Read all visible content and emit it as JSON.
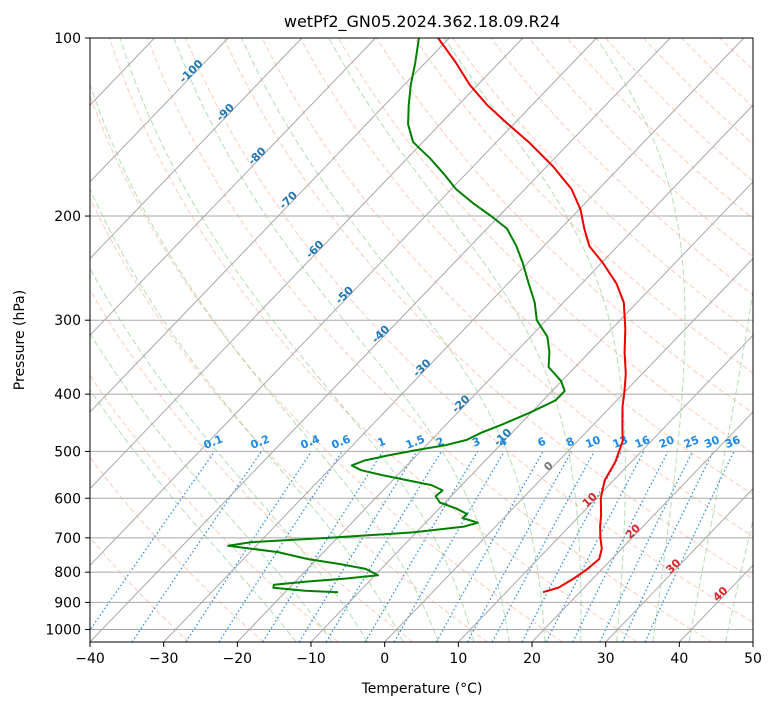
{
  "chart_data": {
    "type": "line",
    "title": "wetPf2_GN05.2024.362.18.09.R24",
    "xlabel": "Temperature (°C)",
    "ylabel": "Pressure (hPa)",
    "xlim": [
      -40,
      50
    ],
    "ylim": [
      1050,
      100
    ],
    "y_scale": "log",
    "grid": true,
    "x_ticks": [
      -40,
      -30,
      -20,
      -10,
      0,
      10,
      20,
      30,
      40,
      50
    ],
    "y_ticks": [
      100,
      200,
      300,
      400,
      500,
      600,
      700,
      800,
      900,
      1000
    ],
    "skew": 35,
    "series": [
      {
        "color": "#ee0000",
        "points": [
          {
            "p": 865,
            "t": 15
          },
          {
            "p": 850,
            "t": 16.5
          },
          {
            "p": 820,
            "t": 17.4
          },
          {
            "p": 790,
            "t": 18
          },
          {
            "p": 760,
            "t": 18.3
          },
          {
            "p": 730,
            "t": 17.3
          },
          {
            "p": 700,
            "t": 15.7
          },
          {
            "p": 670,
            "t": 14.2
          },
          {
            "p": 640,
            "t": 12.8
          },
          {
            "p": 600,
            "t": 10.6
          },
          {
            "p": 560,
            "t": 8.8
          },
          {
            "p": 520,
            "t": 7.8
          },
          {
            "p": 480,
            "t": 6.1
          },
          {
            "p": 450,
            "t": 3.9
          },
          {
            "p": 420,
            "t": 1.6
          },
          {
            "p": 400,
            "t": 0.2
          },
          {
            "p": 370,
            "t": -2.2
          },
          {
            "p": 340,
            "t": -5.2
          },
          {
            "p": 310,
            "t": -8.2
          },
          {
            "p": 280,
            "t": -11.8
          },
          {
            "p": 260,
            "t": -15.3
          },
          {
            "p": 240,
            "t": -19.8
          },
          {
            "p": 225,
            "t": -23.8
          },
          {
            "p": 210,
            "t": -26.8
          },
          {
            "p": 195,
            "t": -29.8
          },
          {
            "p": 180,
            "t": -33.7
          },
          {
            "p": 165,
            "t": -39.1
          },
          {
            "p": 150,
            "t": -45.6
          },
          {
            "p": 140,
            "t": -50.7
          },
          {
            "p": 130,
            "t": -56
          },
          {
            "p": 120,
            "t": -61.1
          },
          {
            "p": 110,
            "t": -65.9
          },
          {
            "p": 100,
            "t": -71.5
          }
        ]
      },
      {
        "color": "#008000",
        "points": [
          {
            "p": 865,
            "t": -12.8
          },
          {
            "p": 860,
            "t": -17.5
          },
          {
            "p": 850,
            "t": -22.2
          },
          {
            "p": 840,
            "t": -22.5
          },
          {
            "p": 830,
            "t": -18.5
          },
          {
            "p": 820,
            "t": -13.5
          },
          {
            "p": 810,
            "t": -9.6
          },
          {
            "p": 790,
            "t": -12.1
          },
          {
            "p": 775,
            "t": -16.3
          },
          {
            "p": 760,
            "t": -21.3
          },
          {
            "p": 740,
            "t": -26.2
          },
          {
            "p": 722,
            "t": -33.8
          },
          {
            "p": 712,
            "t": -31.2
          },
          {
            "p": 700,
            "t": -21
          },
          {
            "p": 685,
            "t": -10.3
          },
          {
            "p": 670,
            "t": -4.3
          },
          {
            "p": 660,
            "t": -2.9
          },
          {
            "p": 648,
            "t": -5.6
          },
          {
            "p": 638,
            "t": -5.5
          },
          {
            "p": 625,
            "t": -7.6
          },
          {
            "p": 610,
            "t": -10.7
          },
          {
            "p": 595,
            "t": -12.1
          },
          {
            "p": 582,
            "t": -11.9
          },
          {
            "p": 570,
            "t": -14.1
          },
          {
            "p": 560,
            "t": -17.8
          },
          {
            "p": 548,
            "t": -22.2
          },
          {
            "p": 538,
            "t": -25.6
          },
          {
            "p": 528,
            "t": -27.5
          },
          {
            "p": 518,
            "t": -26.4
          },
          {
            "p": 508,
            "t": -23.9
          },
          {
            "p": 498,
            "t": -20.9
          },
          {
            "p": 488,
            "t": -17.4
          },
          {
            "p": 478,
            "t": -15.2
          },
          {
            "p": 465,
            "t": -14.2
          },
          {
            "p": 450,
            "t": -12.4
          },
          {
            "p": 430,
            "t": -10.2
          },
          {
            "p": 410,
            "t": -8.3
          },
          {
            "p": 395,
            "t": -8.3
          },
          {
            "p": 380,
            "t": -10.1
          },
          {
            "p": 360,
            "t": -13.6
          },
          {
            "p": 340,
            "t": -15.4
          },
          {
            "p": 320,
            "t": -17.7
          },
          {
            "p": 300,
            "t": -21.3
          },
          {
            "p": 280,
            "t": -23.9
          },
          {
            "p": 260,
            "t": -27.2
          },
          {
            "p": 240,
            "t": -30.7
          },
          {
            "p": 225,
            "t": -33.7
          },
          {
            "p": 210,
            "t": -37.3
          },
          {
            "p": 200,
            "t": -41.1
          },
          {
            "p": 190,
            "t": -45.3
          },
          {
            "p": 180,
            "t": -49.4
          },
          {
            "p": 170,
            "t": -52.9
          },
          {
            "p": 160,
            "t": -56.8
          },
          {
            "p": 150,
            "t": -61.3
          },
          {
            "p": 140,
            "t": -64.3
          },
          {
            "p": 130,
            "t": -66.7
          },
          {
            "p": 120,
            "t": -69.1
          },
          {
            "p": 110,
            "t": -71.4
          },
          {
            "p": 100,
            "t": -74.1
          }
        ]
      }
    ],
    "isotherm_labels": [
      {
        "text": "-100",
        "p": 115,
        "t": -100
      },
      {
        "text": "-90",
        "p": 135,
        "t": -90
      },
      {
        "text": "-80",
        "p": 160,
        "t": -80
      },
      {
        "text": "-70",
        "p": 190,
        "t": -70
      },
      {
        "text": "-60",
        "p": 230,
        "t": -60
      },
      {
        "text": "-50",
        "p": 275,
        "t": -50
      },
      {
        "text": "-40",
        "p": 320,
        "t": -40
      },
      {
        "text": "-30",
        "p": 365,
        "t": -30
      },
      {
        "text": "-20",
        "p": 420,
        "t": -20
      },
      {
        "text": "-10",
        "p": 478,
        "t": -10
      },
      {
        "text": "0",
        "p": 535,
        "t": 0
      },
      {
        "text": "10",
        "p": 610,
        "t": 10
      },
      {
        "text": "20",
        "p": 690,
        "t": 20
      },
      {
        "text": "30",
        "p": 790,
        "t": 30
      },
      {
        "text": "40",
        "p": 880,
        "t": 40
      }
    ],
    "mixing_ratio_labels": [
      {
        "text": "0.1",
        "t": -22.5
      },
      {
        "text": "0.2",
        "t": -16.8
      },
      {
        "text": "0.4",
        "t": -9.2
      },
      {
        "text": "0.6",
        "t": -5
      },
      {
        "text": "1",
        "t": 0.6
      },
      {
        "text": "1.5",
        "t": 5
      },
      {
        "text": "2",
        "t": 8.6
      },
      {
        "text": "3",
        "t": 13.6
      },
      {
        "text": "4",
        "t": 17.3
      },
      {
        "text": "6",
        "t": 22.5
      },
      {
        "text": "8",
        "t": 26.3
      },
      {
        "text": "10",
        "t": 29.6
      },
      {
        "text": "13",
        "t": 33.5
      },
      {
        "text": "16",
        "t": 36.8
      },
      {
        "text": "20",
        "t": 40.4
      },
      {
        "text": "25",
        "t": 44.2
      },
      {
        "text": "30",
        "t": 47.4
      },
      {
        "text": "36",
        "t": 50.6
      }
    ],
    "colors": {
      "isotherm_label": "#1f77b4",
      "mixing_ratio": "#1e88e5",
      "dry_adiabat": "#ff9f80",
      "moist_adiabat": "#6abf69",
      "grid": "#a8a8a8",
      "temperature": "#ee0000",
      "dewpoint": "#008000"
    }
  }
}
